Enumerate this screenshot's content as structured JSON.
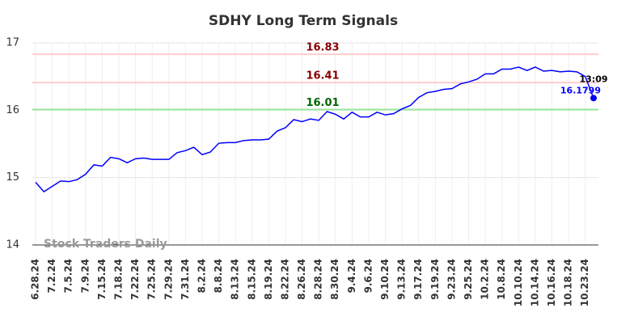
{
  "chart_data": {
    "type": "line",
    "title": "SDHY Long Term Signals",
    "categories": [
      "6.28.24",
      null,
      "7.2.24",
      null,
      "7.5.24",
      null,
      "7.9.24",
      null,
      "7.15.24",
      null,
      "7.18.24",
      null,
      "7.22.24",
      null,
      "7.25.24",
      null,
      "7.29.24",
      null,
      "7.31.24",
      null,
      "8.2.24",
      null,
      "8.8.24",
      null,
      "8.13.24",
      null,
      "8.15.24",
      null,
      "8.19.24",
      null,
      "8.22.24",
      null,
      "8.26.24",
      null,
      "8.28.24",
      null,
      "8.30.24",
      null,
      "9.4.24",
      null,
      "9.6.24",
      null,
      "9.10.24",
      null,
      "9.13.24",
      null,
      "9.17.24",
      null,
      "9.19.24",
      null,
      "9.23.24",
      null,
      "9.25.24",
      null,
      "10.2.24",
      null,
      "10.8.24",
      null,
      "10.10.24",
      null,
      "10.14.24",
      null,
      "10.16.24",
      null,
      "10.18.24",
      null,
      "10.23.24",
      null
    ],
    "values": [
      14.93,
      14.79,
      14.87,
      14.95,
      14.94,
      14.97,
      15.05,
      15.19,
      15.17,
      15.3,
      15.28,
      15.22,
      15.28,
      15.29,
      15.27,
      15.27,
      15.27,
      15.37,
      15.4,
      15.45,
      15.34,
      15.38,
      15.51,
      15.52,
      15.52,
      15.55,
      15.56,
      15.56,
      15.57,
      15.69,
      15.74,
      15.86,
      15.83,
      15.87,
      15.85,
      15.98,
      15.94,
      15.87,
      15.97,
      15.9,
      15.9,
      15.97,
      15.93,
      15.95,
      16.02,
      16.07,
      16.19,
      16.26,
      16.28,
      16.31,
      16.32,
      16.39,
      16.42,
      16.46,
      16.54,
      16.54,
      16.61,
      16.61,
      16.64,
      16.59,
      16.64,
      16.58,
      16.59,
      16.57,
      16.58,
      16.57,
      16.5,
      16.1799
    ],
    "color": "#0000ff",
    "ylim": [
      14,
      17
    ],
    "yticks": [
      14,
      15,
      16,
      17
    ],
    "grid": true,
    "hlines": [
      {
        "value": 16.83,
        "color": "#ffcccc",
        "label_color": "#8b0000"
      },
      {
        "value": 16.41,
        "color": "#ffcccc",
        "label_color": "#8b0000"
      },
      {
        "value": 16.01,
        "color": "#99e699",
        "label_color": "#006400"
      }
    ],
    "last_time": "13:09",
    "watermark": "Stock Traders Daily"
  }
}
